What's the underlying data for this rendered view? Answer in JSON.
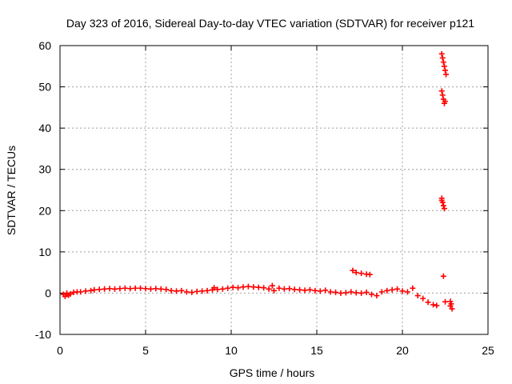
{
  "chart_data": {
    "type": "scatter",
    "title": "Day 323 of 2016, Sidereal Day-to-day VTEC variation (SDTVAR) for receiver p121",
    "xlabel": "GPS time / hours",
    "ylabel": "SDTVAR / TECUs",
    "xlim": [
      0,
      25
    ],
    "ylim": [
      -10,
      60
    ],
    "xticks": [
      0,
      5,
      10,
      15,
      20,
      25
    ],
    "yticks": [
      -10,
      0,
      10,
      20,
      30,
      40,
      50,
      60
    ],
    "grid": true,
    "marker": "+",
    "series": [
      {
        "name": "SDTVAR",
        "color": "#ff0000",
        "points": [
          [
            0.2,
            -0.3
          ],
          [
            0.3,
            -0.8
          ],
          [
            0.4,
            0.0
          ],
          [
            0.5,
            -0.5
          ],
          [
            0.6,
            -0.2
          ],
          [
            0.8,
            0.2
          ],
          [
            1.0,
            0.3
          ],
          [
            1.2,
            0.3
          ],
          [
            1.5,
            0.5
          ],
          [
            1.8,
            0.6
          ],
          [
            2.0,
            0.8
          ],
          [
            2.3,
            0.9
          ],
          [
            2.6,
            1.0
          ],
          [
            2.9,
            1.1
          ],
          [
            3.2,
            1.0
          ],
          [
            3.5,
            1.1
          ],
          [
            3.8,
            1.2
          ],
          [
            4.1,
            1.1
          ],
          [
            4.4,
            1.2
          ],
          [
            4.7,
            1.2
          ],
          [
            5.0,
            1.1
          ],
          [
            5.3,
            1.0
          ],
          [
            5.6,
            1.1
          ],
          [
            5.9,
            1.0
          ],
          [
            6.2,
            0.9
          ],
          [
            6.5,
            0.6
          ],
          [
            6.8,
            0.5
          ],
          [
            7.1,
            0.6
          ],
          [
            7.4,
            0.3
          ],
          [
            7.7,
            0.2
          ],
          [
            8.0,
            0.4
          ],
          [
            8.3,
            0.5
          ],
          [
            8.6,
            0.6
          ],
          [
            8.9,
            0.8
          ],
          [
            9.0,
            1.3
          ],
          [
            9.2,
            0.9
          ],
          [
            9.5,
            1.0
          ],
          [
            9.8,
            1.2
          ],
          [
            10.1,
            1.4
          ],
          [
            10.4,
            1.3
          ],
          [
            10.7,
            1.5
          ],
          [
            11.0,
            1.6
          ],
          [
            11.3,
            1.5
          ],
          [
            11.6,
            1.4
          ],
          [
            11.9,
            1.3
          ],
          [
            12.2,
            1.0
          ],
          [
            12.4,
            1.8
          ],
          [
            12.5,
            0.6
          ],
          [
            12.8,
            1.2
          ],
          [
            13.1,
            1.0
          ],
          [
            13.4,
            1.1
          ],
          [
            13.7,
            0.9
          ],
          [
            14.0,
            0.8
          ],
          [
            14.3,
            0.7
          ],
          [
            14.6,
            0.8
          ],
          [
            14.9,
            0.6
          ],
          [
            15.2,
            0.5
          ],
          [
            15.5,
            0.7
          ],
          [
            15.8,
            0.3
          ],
          [
            16.1,
            0.2
          ],
          [
            16.4,
            0.0
          ],
          [
            16.7,
            0.1
          ],
          [
            17.0,
            0.3
          ],
          [
            17.3,
            0.1
          ],
          [
            17.6,
            0.0
          ],
          [
            17.9,
            0.2
          ],
          [
            18.2,
            -0.3
          ],
          [
            18.5,
            -0.6
          ],
          [
            18.8,
            0.3
          ],
          [
            19.1,
            0.6
          ],
          [
            19.4,
            0.8
          ],
          [
            19.7,
            1.0
          ],
          [
            20.0,
            0.5
          ],
          [
            20.3,
            0.3
          ],
          [
            20.6,
            1.2
          ],
          [
            20.9,
            -0.6
          ],
          [
            21.2,
            -1.3
          ],
          [
            21.5,
            -2.2
          ],
          [
            21.8,
            -2.8
          ],
          [
            22.0,
            -3.0
          ],
          [
            17.1,
            5.5
          ],
          [
            17.3,
            5.0
          ],
          [
            17.6,
            4.8
          ],
          [
            17.9,
            4.6
          ],
          [
            18.1,
            4.5
          ],
          [
            22.4,
            4.1
          ],
          [
            22.5,
            -2.1
          ],
          [
            22.8,
            -2.0
          ],
          [
            22.8,
            -3.1
          ],
          [
            22.9,
            -3.8
          ],
          [
            22.85,
            -2.6
          ],
          [
            22.3,
            23.0
          ],
          [
            22.35,
            22.0
          ],
          [
            22.4,
            21.2
          ],
          [
            22.45,
            20.5
          ],
          [
            22.3,
            22.5
          ],
          [
            22.3,
            49.0
          ],
          [
            22.35,
            48.0
          ],
          [
            22.4,
            47.0
          ],
          [
            22.45,
            46.0
          ],
          [
            22.5,
            46.5
          ],
          [
            22.3,
            58.0
          ],
          [
            22.35,
            57.0
          ],
          [
            22.4,
            56.0
          ],
          [
            22.45,
            55.0
          ],
          [
            22.5,
            54.0
          ],
          [
            22.55,
            53.0
          ]
        ]
      }
    ]
  }
}
